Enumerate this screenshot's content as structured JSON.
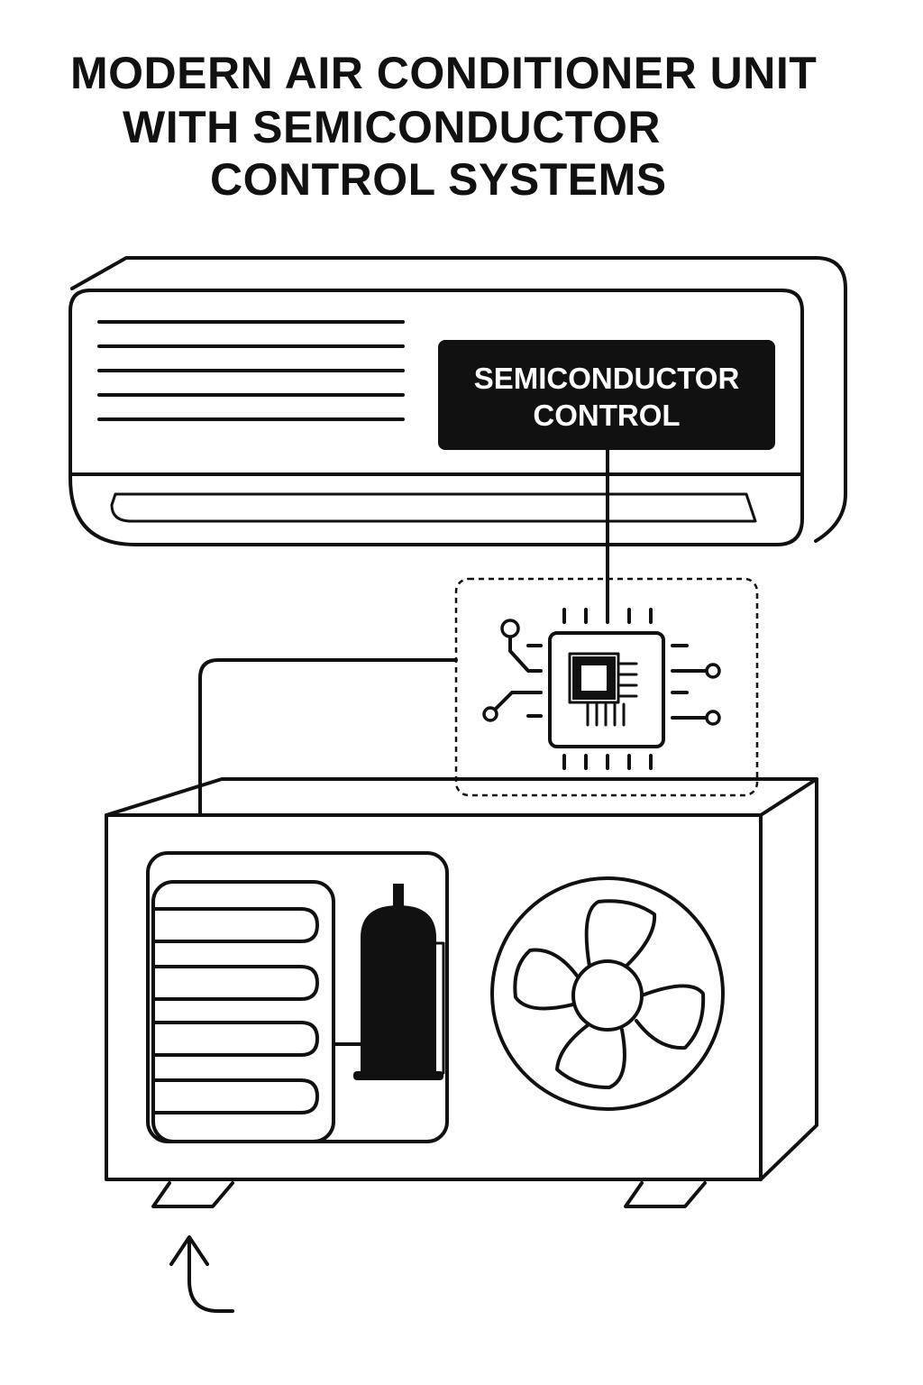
{
  "title": {
    "line1": "MODERN AIR CONDITIONER UNIT",
    "line2": "WITH SEMICONDUCTOR",
    "line3": "CONTROL SYSTEMS"
  },
  "indoor_unit": {
    "label_line1": "SEMICONDUCTOR",
    "label_line2": "CONTROL",
    "label_color": "#111111"
  },
  "icons": [
    "microchip-icon",
    "fan-icon",
    "compressor-icon",
    "condenser-coil-icon",
    "curved-arrow-icon"
  ],
  "colors": {
    "stroke": "#111111",
    "background": "#ffffff"
  }
}
